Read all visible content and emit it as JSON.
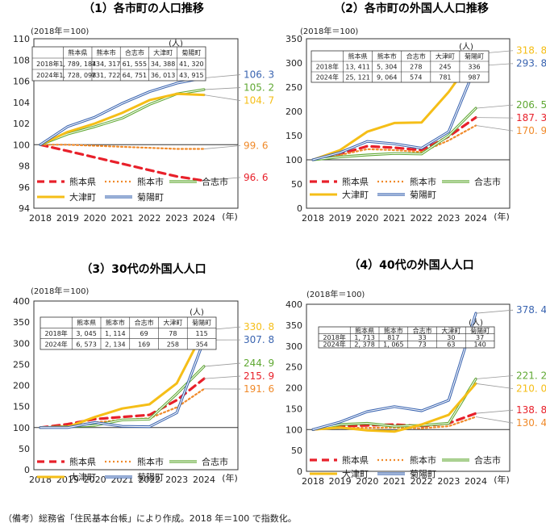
{
  "note": "（備考）総務省「住民基本台帳」により作成。2018 年＝100 で指数化。",
  "colors": {
    "熊本県": "#e8202a",
    "熊本市": "#f08a2a",
    "合志市": "#5fa832",
    "大津町": "#f5be17",
    "菊陽町": "#3a64b0",
    "labelcolors": [
      "#e8202a",
      "#f08a2a",
      "#5fa832",
      "#f5be17",
      "#3a64b0"
    ]
  },
  "chart_data": [
    {
      "type": "line",
      "title": "（1）各市町の人口推移",
      "base_note": "(2018年＝100)",
      "x": [
        "2018",
        "2019",
        "2020",
        "2021",
        "2022",
        "2023",
        "2024"
      ],
      "x_unit": "(年)",
      "ylim": [
        94,
        110
      ],
      "yticks": [
        94,
        96,
        98,
        100,
        102,
        104,
        106,
        108,
        110
      ],
      "series": [
        {
          "name": "熊本県",
          "values": [
            100,
            99.4,
            98.8,
            98.2,
            97.6,
            97.0,
            96.6
          ],
          "end_label": "96. 6"
        },
        {
          "name": "熊本市",
          "values": [
            100,
            100.0,
            99.9,
            99.8,
            99.7,
            99.6,
            99.6
          ],
          "end_label": "99. 6"
        },
        {
          "name": "合志市",
          "values": [
            100,
            101.0,
            101.7,
            102.5,
            103.8,
            104.8,
            105.2
          ],
          "end_label": "105. 2"
        },
        {
          "name": "大津町",
          "values": [
            100,
            101.2,
            102.0,
            103.0,
            104.2,
            104.8,
            104.7
          ],
          "end_label": "104. 7"
        },
        {
          "name": "菊陽町",
          "values": [
            100,
            101.7,
            102.6,
            103.9,
            105.0,
            105.8,
            106.3
          ],
          "end_label": "106. 3"
        }
      ],
      "table": {
        "unit": "(人)",
        "columns": [
          "熊本県",
          "熊本市",
          "合志市",
          "大津町",
          "菊陽町"
        ],
        "rows": [
          {
            "label": "2018年",
            "cells": [
              "1, 789, 184",
              "734, 317",
              "61, 555",
              "34, 388",
              "41, 320"
            ]
          },
          {
            "label": "2024年",
            "cells": [
              "1, 728, 098",
              "731, 722",
              "64, 751",
              "36, 013",
              "43, 915"
            ]
          }
        ]
      }
    },
    {
      "type": "line",
      "title": "（2）各市町の外国人人口推移",
      "base_note": "(2018年＝100)",
      "x": [
        "2018",
        "2019",
        "2020",
        "2021",
        "2022",
        "2023",
        "2024"
      ],
      "x_unit": "(年)",
      "ylim": [
        0,
        350
      ],
      "yticks": [
        0,
        50,
        100,
        150,
        200,
        250,
        300,
        350
      ],
      "series": [
        {
          "name": "熊本県",
          "values": [
            100,
            112,
            128,
            125,
            120,
            148,
            187.3
          ],
          "end_label": "187. 3"
        },
        {
          "name": "熊本市",
          "values": [
            100,
            110,
            122,
            120,
            116,
            140,
            170.9
          ],
          "end_label": "170. 9"
        },
        {
          "name": "合志市",
          "values": [
            100,
            106,
            110,
            113,
            112,
            150,
            206.5
          ],
          "end_label": "206. 5"
        },
        {
          "name": "大津町",
          "values": [
            100,
            120,
            158,
            176,
            177,
            240,
            318.8
          ],
          "end_label": "318. 8"
        },
        {
          "name": "菊陽町",
          "values": [
            100,
            115,
            138,
            133,
            124,
            158,
            293.8
          ],
          "end_label": "293. 8"
        }
      ],
      "table": {
        "unit": "(人)",
        "columns": [
          "熊本県",
          "熊本市",
          "合志市",
          "大津町",
          "菊陽町"
        ],
        "rows": [
          {
            "label": "2018年",
            "cells": [
              "13, 411",
              "5, 304",
              "278",
              "245",
              "336"
            ]
          },
          {
            "label": "2024年",
            "cells": [
              "25, 121",
              "9, 064",
              "574",
              "781",
              "987"
            ]
          }
        ]
      }
    },
    {
      "type": "line",
      "title": "（3）30代の外国人人口",
      "base_note": "(2018年＝100)",
      "x": [
        "2018",
        "2019",
        "2020",
        "2021",
        "2022",
        "2023",
        "2024"
      ],
      "x_unit": "(年)",
      "ylim": [
        0,
        400
      ],
      "yticks": [
        0,
        50,
        100,
        150,
        200,
        250,
        300,
        350,
        400
      ],
      "series": [
        {
          "name": "熊本県",
          "values": [
            100,
            108,
            120,
            125,
            130,
            165,
            215.9
          ],
          "end_label": "215. 9"
        },
        {
          "name": "熊本市",
          "values": [
            100,
            104,
            112,
            118,
            122,
            148,
            191.6
          ],
          "end_label": "191. 6"
        },
        {
          "name": "合志市",
          "values": [
            100,
            102,
            105,
            118,
            120,
            180,
            244.9
          ],
          "end_label": "244. 9"
        },
        {
          "name": "大津町",
          "values": [
            100,
            101,
            125,
            145,
            155,
            205,
            330.8
          ],
          "end_label": "330. 8"
        },
        {
          "name": "菊陽町",
          "values": [
            100,
            100,
            112,
            103,
            102,
            135,
            307.8
          ],
          "end_label": "307. 8"
        }
      ],
      "table": {
        "unit": "(人)",
        "columns": [
          "熊本県",
          "熊本市",
          "合志市",
          "大津町",
          "菊陽町"
        ],
        "rows": [
          {
            "label": "2018年",
            "cells": [
              "3, 045",
              "1, 114",
              "69",
              "78",
              "115"
            ]
          },
          {
            "label": "2024年",
            "cells": [
              "6, 573",
              "2, 134",
              "169",
              "258",
              "354"
            ]
          }
        ]
      }
    },
    {
      "type": "line",
      "title": "（4）40代の外国人人口",
      "base_note": "(2018年＝100)",
      "x": [
        "2018",
        "2019",
        "2020",
        "2021",
        "2022",
        "2023",
        "2024"
      ],
      "x_unit": "(年)",
      "ylim": [
        0,
        400
      ],
      "yticks": [
        0,
        50,
        100,
        150,
        200,
        250,
        300,
        350,
        400
      ],
      "series": [
        {
          "name": "熊本県",
          "values": [
            100,
            108,
            110,
            112,
            108,
            115,
            138.8
          ],
          "end_label": "138. 8"
        },
        {
          "name": "熊本市",
          "values": [
            100,
            104,
            104,
            105,
            103,
            108,
            130.4
          ],
          "end_label": "130. 4"
        },
        {
          "name": "合志市",
          "values": [
            100,
            112,
            115,
            108,
            110,
            115,
            221.2
          ],
          "end_label": "221. 2"
        },
        {
          "name": "大津町",
          "values": [
            100,
            105,
            98,
            95,
            112,
            135,
            210.0
          ],
          "end_label": "210. 0"
        },
        {
          "name": "菊陽町",
          "values": [
            100,
            118,
            143,
            155,
            145,
            170,
            378.4
          ],
          "end_label": "378. 4"
        }
      ],
      "table": {
        "unit": "(人)",
        "columns": [
          "熊本県",
          "熊本市",
          "合志市",
          "大津町",
          "菊陽町"
        ],
        "rows": [
          {
            "label": "2018年",
            "cells": [
              "1, 713",
              "817",
              "33",
              "30",
              "37"
            ]
          },
          {
            "label": "2024年",
            "cells": [
              "2, 378",
              "1, 065",
              "73",
              "63",
              "140"
            ]
          }
        ]
      }
    }
  ]
}
